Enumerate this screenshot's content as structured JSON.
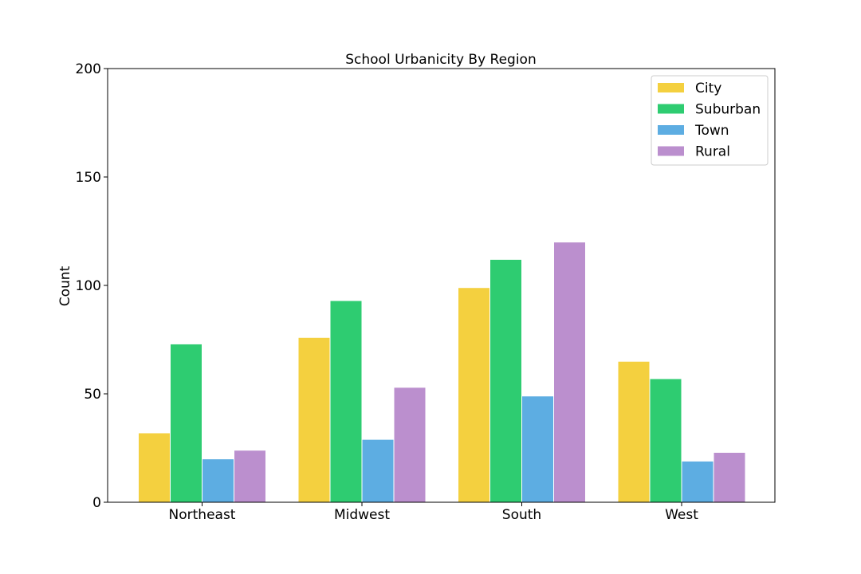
{
  "chart_data": {
    "type": "bar",
    "title": "School Urbanicity By Region",
    "xlabel": "",
    "ylabel": "Count",
    "categories": [
      "Northeast",
      "Midwest",
      "South",
      "West"
    ],
    "ylim": [
      0,
      200
    ],
    "yticks": [
      0,
      50,
      100,
      150,
      200
    ],
    "grid": false,
    "legend_position": "top-right",
    "series": [
      {
        "name": "City",
        "color": "#f4d03f",
        "values": [
          32,
          76,
          99,
          65
        ]
      },
      {
        "name": "Suburban",
        "color": "#2ecc71",
        "values": [
          73,
          93,
          112,
          57
        ]
      },
      {
        "name": "Town",
        "color": "#5dade2",
        "values": [
          20,
          29,
          49,
          19
        ]
      },
      {
        "name": "Rural",
        "color": "#bb8fce",
        "values": [
          24,
          53,
          120,
          23
        ]
      }
    ]
  }
}
